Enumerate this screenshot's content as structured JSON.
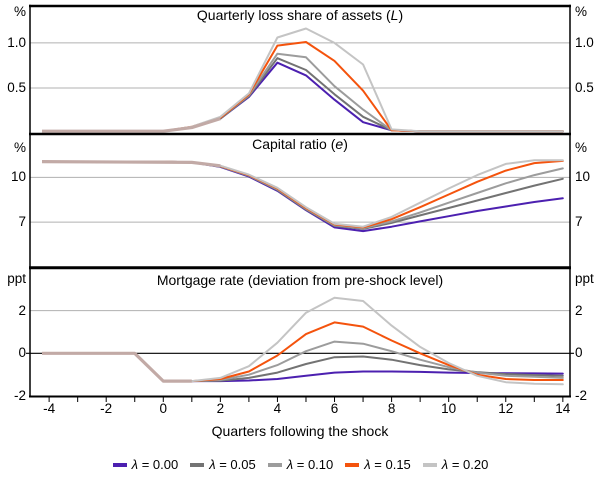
{
  "colors": {
    "l000": "#4c20b0",
    "l005": "#737373",
    "l010": "#9c9c9c",
    "l015": "#f4530d",
    "l020": "#c4c4c4",
    "pre_shock": "#c2aaa6",
    "gridline": "#b1b1b1",
    "axis": "#000000"
  },
  "x_axis": {
    "title": "Quarters following the shock",
    "tick_label_values": [
      -4,
      -2,
      0,
      2,
      4,
      6,
      8,
      10,
      12,
      14
    ],
    "minor_tick_step": 1
  },
  "legend": {
    "items": [
      {
        "label": "λ = 0.00",
        "label_html": "<i>λ</i> = 0.00",
        "color_key": "l000"
      },
      {
        "label": "λ = 0.05",
        "label_html": "<i>λ</i> = 0.05",
        "color_key": "l005"
      },
      {
        "label": "λ = 0.10",
        "label_html": "<i>λ</i> = 0.10",
        "color_key": "l010"
      },
      {
        "label": "λ = 0.15",
        "label_html": "<i>λ</i> = 0.15",
        "color_key": "l015"
      },
      {
        "label": "λ = 0.20",
        "label_html": "<i>λ</i> = 0.20",
        "color_key": "l020"
      }
    ]
  },
  "chart_data": [
    {
      "type": "line",
      "title": "Quarterly loss share of assets (L)",
      "title_html": "Quarterly loss share of assets (<i>L</i>)",
      "unit_label": "%",
      "ylim": [
        0,
        1.41
      ],
      "gridline_values": [
        0.5,
        1.0
      ],
      "zero_line": false,
      "y_ticks": [
        {
          "value": 1.0,
          "label": "1.0"
        },
        {
          "value": 0.5,
          "label": "0.5"
        }
      ],
      "x": [
        -4,
        -3,
        -2,
        -1,
        0,
        1,
        2,
        3,
        4,
        5,
        6,
        7,
        8,
        9,
        10,
        11,
        12,
        13,
        14
      ],
      "series": [
        {
          "name": "λ = 0.00",
          "color_key": "l000",
          "values": [
            0.02,
            0.02,
            0.02,
            0.02,
            0.02,
            0.06,
            0.16,
            0.4,
            0.78,
            0.64,
            0.37,
            0.12,
            0.03,
            0.02,
            0.02,
            0.02,
            0.02,
            0.02,
            0.02
          ]
        },
        {
          "name": "λ = 0.05",
          "color_key": "l005",
          "values": [
            0.02,
            0.02,
            0.02,
            0.02,
            0.02,
            0.06,
            0.16,
            0.41,
            0.83,
            0.7,
            0.43,
            0.18,
            0.03,
            0.02,
            0.02,
            0.02,
            0.02,
            0.02,
            0.02
          ]
        },
        {
          "name": "λ = 0.10",
          "color_key": "l010",
          "values": [
            0.02,
            0.02,
            0.02,
            0.02,
            0.02,
            0.06,
            0.17,
            0.42,
            0.88,
            0.84,
            0.52,
            0.26,
            0.03,
            0.02,
            0.02,
            0.02,
            0.02,
            0.02,
            0.02
          ]
        },
        {
          "name": "λ = 0.15",
          "color_key": "l015",
          "values": [
            0.02,
            0.02,
            0.02,
            0.02,
            0.02,
            0.07,
            0.17,
            0.43,
            0.97,
            1.01,
            0.8,
            0.47,
            0.03,
            0.02,
            0.02,
            0.02,
            0.02,
            0.02,
            0.02
          ]
        },
        {
          "name": "λ = 0.20",
          "color_key": "l020",
          "values": [
            0.02,
            0.02,
            0.02,
            0.02,
            0.02,
            0.07,
            0.18,
            0.44,
            1.06,
            1.16,
            1.0,
            0.76,
            0.04,
            0.02,
            0.02,
            0.02,
            0.02,
            0.02,
            0.02
          ]
        }
      ],
      "pre_shock_overlap": {
        "color_key": "pre_shock",
        "points": [
          [
            -4.25,
            0.02
          ],
          [
            0,
            0.02
          ],
          [
            1,
            0.06
          ],
          [
            2,
            0.16
          ]
        ]
      }
    },
    {
      "type": "line",
      "title": "Capital ratio (e)",
      "title_html": "Capital ratio (<i>e</i>)",
      "unit_label": "%",
      "ylim": [
        4.0,
        12.9
      ],
      "gridline_values": [
        7,
        10
      ],
      "zero_line": false,
      "y_ticks": [
        {
          "value": 10,
          "label": "10"
        },
        {
          "value": 7,
          "label": "7"
        }
      ],
      "x": [
        -4,
        -3,
        -2,
        -1,
        0,
        1,
        2,
        3,
        4,
        5,
        6,
        7,
        8,
        9,
        10,
        11,
        12,
        13,
        14
      ],
      "series": [
        {
          "name": "λ = 0.00",
          "color_key": "l000",
          "values": [
            11.05,
            11.05,
            11.05,
            11.05,
            11.05,
            11.0,
            10.7,
            10.05,
            9.1,
            7.8,
            6.65,
            6.4,
            6.7,
            7.05,
            7.4,
            7.75,
            8.05,
            8.35,
            8.6
          ]
        },
        {
          "name": "λ = 0.05",
          "color_key": "l005",
          "values": [
            11.05,
            11.05,
            11.05,
            11.05,
            11.05,
            11.0,
            10.72,
            10.1,
            9.15,
            7.85,
            6.75,
            6.55,
            6.95,
            7.45,
            7.95,
            8.45,
            8.95,
            9.45,
            9.9
          ]
        },
        {
          "name": "λ = 0.10",
          "color_key": "l010",
          "values": [
            11.05,
            11.05,
            11.05,
            11.05,
            11.05,
            11.0,
            10.74,
            10.12,
            9.2,
            7.9,
            6.8,
            6.6,
            7.05,
            7.65,
            8.3,
            8.95,
            9.6,
            10.15,
            10.6
          ]
        },
        {
          "name": "λ = 0.15",
          "color_key": "l015",
          "values": [
            11.05,
            11.05,
            11.05,
            11.05,
            11.05,
            11.0,
            10.76,
            10.15,
            9.25,
            7.95,
            6.85,
            6.65,
            7.2,
            8.0,
            8.85,
            9.7,
            10.45,
            10.95,
            11.1
          ]
        },
        {
          "name": "λ = 0.20",
          "color_key": "l020",
          "values": [
            11.05,
            11.05,
            11.05,
            11.05,
            11.05,
            11.0,
            10.78,
            10.18,
            9.3,
            8.0,
            6.9,
            6.7,
            7.35,
            8.3,
            9.25,
            10.15,
            10.9,
            11.15,
            11.15
          ]
        }
      ],
      "pre_shock_overlap": {
        "color_key": "pre_shock",
        "points": [
          [
            -4.25,
            11.05
          ],
          [
            1,
            11.0
          ],
          [
            2,
            10.77
          ]
        ]
      }
    },
    {
      "type": "line",
      "title": "Mortgage rate (deviation from pre-shock level)",
      "title_html": "Mortgage rate (deviation from pre-shock level)",
      "unit_label": "ppt",
      "ylim": [
        -2.02,
        3.9
      ],
      "gridline_values": [
        2
      ],
      "zero_line": true,
      "y_ticks": [
        {
          "value": 2,
          "label": "2"
        },
        {
          "value": 0,
          "label": "0"
        },
        {
          "value": -2,
          "label": "-2"
        }
      ],
      "x": [
        -4,
        -3,
        -2,
        -1,
        0,
        1,
        2,
        3,
        4,
        5,
        6,
        7,
        8,
        9,
        10,
        11,
        12,
        13,
        14
      ],
      "series": [
        {
          "name": "λ = 0.00",
          "color_key": "l000",
          "values": [
            0,
            0,
            0,
            0,
            -1.3,
            -1.3,
            -1.3,
            -1.27,
            -1.2,
            -1.05,
            -0.9,
            -0.85,
            -0.85,
            -0.87,
            -0.9,
            -0.92,
            -0.93,
            -0.94,
            -0.95
          ]
        },
        {
          "name": "λ = 0.05",
          "color_key": "l005",
          "values": [
            0,
            0,
            0,
            0,
            -1.3,
            -1.3,
            -1.28,
            -1.15,
            -0.9,
            -0.5,
            -0.18,
            -0.15,
            -0.3,
            -0.55,
            -0.75,
            -0.88,
            -0.97,
            -1.02,
            -1.05
          ]
        },
        {
          "name": "λ = 0.10",
          "color_key": "l010",
          "values": [
            0,
            0,
            0,
            0,
            -1.3,
            -1.3,
            -1.25,
            -1.0,
            -0.55,
            0.1,
            0.55,
            0.45,
            0.1,
            -0.3,
            -0.65,
            -0.9,
            -1.05,
            -1.1,
            -1.15
          ]
        },
        {
          "name": "λ = 0.15",
          "color_key": "l015",
          "values": [
            0,
            0,
            0,
            0,
            -1.3,
            -1.3,
            -1.2,
            -0.85,
            -0.1,
            0.9,
            1.45,
            1.25,
            0.6,
            0.0,
            -0.55,
            -1.0,
            -1.2,
            -1.25,
            -1.25
          ]
        },
        {
          "name": "λ = 0.20",
          "color_key": "l020",
          "values": [
            0,
            0,
            0,
            0,
            -1.3,
            -1.3,
            -1.15,
            -0.6,
            0.5,
            1.9,
            2.6,
            2.45,
            1.3,
            0.3,
            -0.45,
            -1.05,
            -1.35,
            -1.42,
            -1.45
          ]
        }
      ],
      "pre_shock_overlap": {
        "color_key": "pre_shock",
        "points": [
          [
            -4.25,
            0
          ],
          [
            -1,
            0
          ],
          [
            0,
            -1.3
          ],
          [
            1,
            -1.3
          ]
        ]
      }
    }
  ]
}
